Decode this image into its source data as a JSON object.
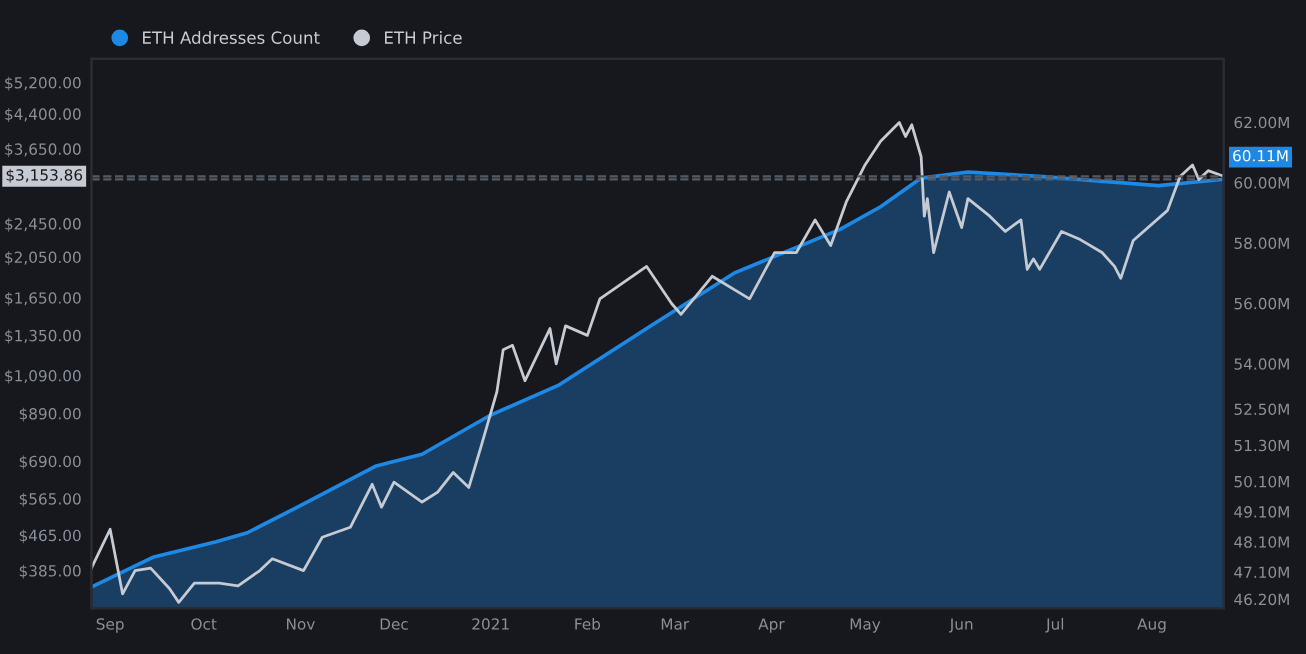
{
  "chart_data": {
    "type": "line",
    "x": [
      "2020-08-26",
      "2020-09-01",
      "2020-09-05",
      "2020-09-09",
      "2020-09-14",
      "2020-09-20",
      "2020-09-23",
      "2020-09-28",
      "2020-10-06",
      "2020-10-12",
      "2020-10-19",
      "2020-10-23",
      "2020-11-02",
      "2020-11-08",
      "2020-11-17",
      "2020-11-24",
      "2020-11-27",
      "2020-12-01",
      "2020-12-10",
      "2020-12-15",
      "2020-12-20",
      "2020-12-25",
      "2020-12-29",
      "2021-01-03",
      "2021-01-05",
      "2021-01-08",
      "2021-01-12",
      "2021-01-20",
      "2021-01-22",
      "2021-01-25",
      "2021-02-01",
      "2021-02-05",
      "2021-02-20",
      "2021-02-28",
      "2021-03-03",
      "2021-03-13",
      "2021-03-25",
      "2021-04-02",
      "2021-04-09",
      "2021-04-15",
      "2021-04-20",
      "2021-04-25",
      "2021-05-01",
      "2021-05-06",
      "2021-05-12",
      "2021-05-14",
      "2021-05-16",
      "2021-05-19",
      "2021-05-20",
      "2021-05-21",
      "2021-05-23",
      "2021-05-28",
      "2021-06-01",
      "2021-06-03",
      "2021-06-10",
      "2021-06-15",
      "2021-06-20",
      "2021-06-22",
      "2021-06-24",
      "2021-06-26",
      "2021-07-03",
      "2021-07-09",
      "2021-07-16",
      "2021-07-20",
      "2021-07-22",
      "2021-07-26",
      "2021-08-06",
      "2021-08-10",
      "2021-08-14",
      "2021-08-16",
      "2021-08-19",
      "2021-08-24"
    ],
    "series": [
      {
        "name": "ETH Addresses Count",
        "type": "area",
        "axis": "y2",
        "color": "#1e88e5",
        "x": [
          "2020-08-26",
          "2020-09-15",
          "2020-10-05",
          "2020-10-15",
          "2020-11-01",
          "2020-11-25",
          "2020-12-10",
          "2021-01-01",
          "2021-01-23",
          "2021-02-22",
          "2021-03-20",
          "2021-04-23",
          "2021-05-06",
          "2021-05-19",
          "2021-06-03",
          "2021-06-27",
          "2021-08-03",
          "2021-08-24"
        ],
        "values": [
          46.6,
          47.6,
          48.1,
          48.4,
          49.3,
          50.6,
          51.0,
          52.3,
          53.3,
          55.3,
          57.0,
          58.45,
          59.2,
          60.15,
          60.35,
          60.2,
          59.9,
          60.11
        ]
      },
      {
        "name": "ETH Price",
        "axis": "y",
        "color": "#c5cad3",
        "values": [
          390,
          480,
          340,
          385,
          390,
          350,
          325,
          360,
          360,
          355,
          385,
          410,
          385,
          460,
          485,
          610,
          540,
          617,
          555,
          585,
          650,
          600,
          750,
          1000,
          1250,
          1280,
          1060,
          1400,
          1160,
          1420,
          1350,
          1640,
          1950,
          1600,
          1510,
          1850,
          1640,
          2100,
          2100,
          2500,
          2180,
          2750,
          3350,
          3800,
          4200,
          3900,
          4150,
          3500,
          2550,
          2800,
          2100,
          2900,
          2400,
          2800,
          2550,
          2350,
          2500,
          1920,
          2030,
          1920,
          2350,
          2250,
          2100,
          1950,
          1830,
          2240,
          2630,
          3150,
          3350,
          3100,
          3250,
          3153.86
        ]
      }
    ],
    "log": "y",
    "xlim": [
      "2020-08-26",
      "2021-08-24"
    ],
    "xticks": [
      {
        "value": "2020-09-01",
        "label": "Sep"
      },
      {
        "value": "2020-10-01",
        "label": "Oct"
      },
      {
        "value": "2020-11-01",
        "label": "Nov"
      },
      {
        "value": "2020-12-01",
        "label": "Dec"
      },
      {
        "value": "2021-01-01",
        "label": "2021"
      },
      {
        "value": "2021-02-01",
        "label": "Feb"
      },
      {
        "value": "2021-03-01",
        "label": "Mar"
      },
      {
        "value": "2021-04-01",
        "label": "Apr"
      },
      {
        "value": "2021-05-01",
        "label": "May"
      },
      {
        "value": "2021-06-01",
        "label": "Jun"
      },
      {
        "value": "2021-07-01",
        "label": "Jul"
      },
      {
        "value": "2021-08-01",
        "label": "Aug"
      }
    ],
    "ylim": [
      315,
      5900
    ],
    "yticks": [
      {
        "value": 385,
        "label": "$385.00"
      },
      {
        "value": 465,
        "label": "$465.00"
      },
      {
        "value": 565,
        "label": "$565.00"
      },
      {
        "value": 690,
        "label": "$690.00"
      },
      {
        "value": 890,
        "label": "$890.00"
      },
      {
        "value": 1090,
        "label": "$1,090.00"
      },
      {
        "value": 1350,
        "label": "$1,350.00"
      },
      {
        "value": 1650,
        "label": "$1,650.00"
      },
      {
        "value": 2050,
        "label": "$2,050.00"
      },
      {
        "value": 2450,
        "label": "$2,450.00"
      },
      {
        "value": 3650,
        "label": "$3,650.00"
      },
      {
        "value": 4400,
        "label": "$4,400.00"
      },
      {
        "value": 5200,
        "label": "$5,200.00"
      }
    ],
    "y2lim": [
      45.9,
      64.1
    ],
    "y2ticks": [
      {
        "value": 46.2,
        "label": "46.20M"
      },
      {
        "value": 47.1,
        "label": "47.10M"
      },
      {
        "value": 48.1,
        "label": "48.10M"
      },
      {
        "value": 49.1,
        "label": "49.10M"
      },
      {
        "value": 50.1,
        "label": "50.10M"
      },
      {
        "value": 51.3,
        "label": "51.30M"
      },
      {
        "value": 52.5,
        "label": "52.50M"
      },
      {
        "value": 54,
        "label": "54.00M"
      },
      {
        "value": 56,
        "label": "56.00M"
      },
      {
        "value": 58,
        "label": "58.00M"
      },
      {
        "value": 60,
        "label": "60.00M"
      },
      {
        "value": 62,
        "label": "62.00M"
      }
    ],
    "ref_lines": [
      {
        "axis": "y",
        "value": 3153.86,
        "label": "$3,153.86",
        "color": "#555a63",
        "line_style": "dashed"
      },
      {
        "axis": "y2",
        "value": 60.11,
        "label": "60.11M",
        "color": "#555a63",
        "line_style": "dashed"
      }
    ],
    "legend": "top left",
    "grid": false,
    "marker": "none",
    "line_style": "solid"
  }
}
